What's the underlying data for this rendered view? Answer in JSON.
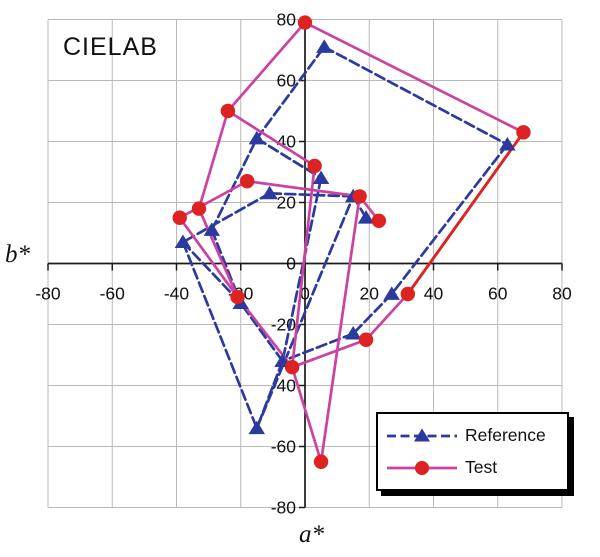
{
  "chart_data": {
    "type": "line",
    "title": "CIELAB",
    "xlabel": "a*",
    "ylabel": "b*",
    "xlim": [
      -80,
      80
    ],
    "ylim": [
      -80,
      80
    ],
    "x_ticks": [
      -80,
      -60,
      -40,
      -20,
      0,
      20,
      40,
      60,
      80
    ],
    "y_ticks": [
      -80,
      -60,
      -40,
      -20,
      0,
      20,
      40,
      60,
      80
    ],
    "grid": true,
    "grid_color": "#b9b9b9",
    "axis_color": "#1a1a1a",
    "text_color": "#111111",
    "legend_position": "bottom-right",
    "series": [
      {
        "name": "Reference",
        "marker": "triangle",
        "line_style": "dashed",
        "color": "#2b3a9e",
        "marker_color": "#2b3a9e",
        "points": [
          [
            6,
            71
          ],
          [
            63,
            39
          ],
          [
            27,
            -10
          ],
          [
            15,
            -23
          ],
          [
            -7,
            -32
          ],
          [
            -15,
            -54
          ],
          [
            15,
            22
          ],
          [
            19,
            15
          ],
          [
            -11,
            23
          ],
          [
            -29,
            11
          ],
          [
            -38,
            7
          ],
          [
            -15,
            41
          ],
          [
            5,
            28
          ],
          [
            -20,
            -13
          ]
        ],
        "segments": [
          [
            [
              6,
              71
            ],
            [
              63,
              39
            ]
          ],
          [
            [
              63,
              39
            ],
            [
              27,
              -10
            ]
          ],
          [
            [
              27,
              -10
            ],
            [
              15,
              -23
            ]
          ],
          [
            [
              15,
              -23
            ],
            [
              -7,
              -32
            ]
          ],
          [
            [
              -7,
              -32
            ],
            [
              -15,
              -54
            ]
          ],
          [
            [
              -15,
              -54
            ],
            [
              15,
              22
            ]
          ],
          [
            [
              15,
              22
            ],
            [
              19,
              15
            ]
          ],
          [
            [
              15,
              22
            ],
            [
              -11,
              23
            ]
          ],
          [
            [
              -11,
              23
            ],
            [
              -38,
              7
            ]
          ],
          [
            [
              -38,
              7
            ],
            [
              -20,
              -13
            ]
          ],
          [
            [
              -29,
              11
            ],
            [
              -20,
              -13
            ]
          ],
          [
            [
              -29,
              11
            ],
            [
              -15,
              41
            ]
          ],
          [
            [
              -15,
              41
            ],
            [
              6,
              71
            ]
          ],
          [
            [
              -15,
              41
            ],
            [
              5,
              28
            ]
          ],
          [
            [
              5,
              28
            ],
            [
              -7,
              -32
            ]
          ],
          [
            [
              -7,
              -32
            ],
            [
              -20,
              -13
            ]
          ],
          [
            [
              -38,
              7
            ],
            [
              -15,
              -54
            ]
          ]
        ]
      },
      {
        "name": "Test",
        "marker": "circle",
        "line_style": "solid",
        "color": "#cc42a0",
        "marker_color": "#dd2222",
        "accent_color": "#dd2222",
        "points": [
          [
            0,
            79
          ],
          [
            68,
            43
          ],
          [
            32,
            -10
          ],
          [
            19,
            -25
          ],
          [
            -4,
            -34
          ],
          [
            5,
            -65
          ],
          [
            17,
            22
          ],
          [
            23,
            14
          ],
          [
            -18,
            27
          ],
          [
            -39,
            15
          ],
          [
            -33,
            18
          ],
          [
            -24,
            50
          ],
          [
            3,
            32
          ],
          [
            -21,
            -11
          ]
        ],
        "segments": [
          [
            [
              0,
              79
            ],
            [
              68,
              43
            ]
          ],
          [
            [
              32,
              -10
            ],
            [
              19,
              -25
            ]
          ],
          [
            [
              19,
              -25
            ],
            [
              -4,
              -34
            ]
          ],
          [
            [
              -4,
              -34
            ],
            [
              5,
              -65
            ]
          ],
          [
            [
              5,
              -65
            ],
            [
              17,
              22
            ]
          ],
          [
            [
              17,
              22
            ],
            [
              23,
              14
            ]
          ],
          [
            [
              17,
              22
            ],
            [
              -18,
              27
            ]
          ],
          [
            [
              -18,
              27
            ],
            [
              -39,
              15
            ]
          ],
          [
            [
              -39,
              15
            ],
            [
              -21,
              -11
            ]
          ],
          [
            [
              -33,
              18
            ],
            [
              -21,
              -11
            ]
          ],
          [
            [
              -33,
              18
            ],
            [
              -24,
              50
            ]
          ],
          [
            [
              -24,
              50
            ],
            [
              0,
              79
            ]
          ],
          [
            [
              -24,
              50
            ],
            [
              3,
              32
            ]
          ],
          [
            [
              3,
              32
            ],
            [
              -4,
              -34
            ]
          ],
          [
            [
              -4,
              -34
            ],
            [
              -21,
              -11
            ]
          ]
        ],
        "accent_segments": [
          [
            [
              68,
              43
            ],
            [
              32,
              -10
            ]
          ]
        ]
      }
    ]
  }
}
